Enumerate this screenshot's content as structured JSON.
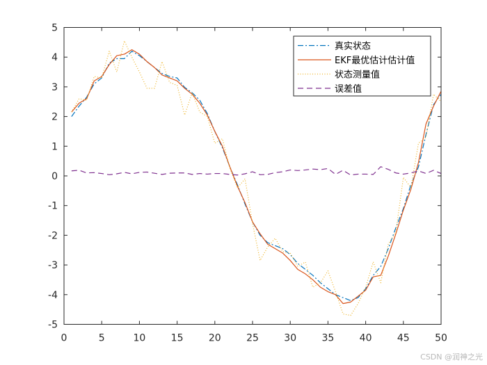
{
  "chart_data": {
    "type": "line",
    "title": "",
    "xlabel": "",
    "ylabel": "",
    "xlim": [
      0,
      50
    ],
    "ylim": [
      -5,
      5
    ],
    "xticks": [
      0,
      5,
      10,
      15,
      20,
      25,
      30,
      35,
      40,
      45,
      50
    ],
    "yticks": [
      -5,
      -4,
      -3,
      -2,
      -1,
      0,
      1,
      2,
      3,
      4,
      5
    ],
    "grid": false,
    "legend_position": "top-right",
    "x": [
      1,
      2,
      3,
      4,
      5,
      6,
      7,
      8,
      9,
      10,
      11,
      12,
      13,
      14,
      15,
      16,
      17,
      18,
      19,
      20,
      21,
      22,
      23,
      24,
      25,
      26,
      27,
      28,
      29,
      30,
      31,
      32,
      33,
      34,
      35,
      36,
      37,
      38,
      39,
      40,
      41,
      42,
      43,
      44,
      45,
      46,
      47,
      48,
      49,
      50
    ],
    "series": [
      {
        "name": "真实状态",
        "color": "#0072BD",
        "style": "dash-dot",
        "values": [
          2.0,
          2.35,
          2.65,
          3.1,
          3.3,
          3.8,
          3.95,
          3.95,
          4.2,
          4.05,
          3.85,
          3.65,
          3.45,
          3.35,
          3.3,
          2.98,
          2.8,
          2.55,
          2.1,
          1.5,
          0.95,
          0.3,
          -0.3,
          -0.95,
          -1.55,
          -2.0,
          -2.25,
          -2.35,
          -2.45,
          -2.65,
          -2.95,
          -3.15,
          -3.35,
          -3.6,
          -3.8,
          -4.0,
          -4.1,
          -4.2,
          -4.1,
          -3.8,
          -3.35,
          -3.05,
          -2.45,
          -1.75,
          -1.1,
          -0.3,
          0.3,
          1.4,
          2.4,
          2.75
        ]
      },
      {
        "name": "EKF最优估计估计值",
        "color": "#D95319",
        "style": "solid",
        "values": [
          2.15,
          2.45,
          2.6,
          3.2,
          3.35,
          3.75,
          4.05,
          4.1,
          4.25,
          4.1,
          3.85,
          3.65,
          3.4,
          3.3,
          3.2,
          2.95,
          2.75,
          2.45,
          2.05,
          1.5,
          1.0,
          0.3,
          -0.35,
          -0.9,
          -1.55,
          -1.95,
          -2.3,
          -2.45,
          -2.6,
          -2.85,
          -3.15,
          -3.3,
          -3.5,
          -3.75,
          -3.9,
          -4.0,
          -4.3,
          -4.25,
          -4.05,
          -3.85,
          -3.4,
          -3.35,
          -2.7,
          -1.95,
          -1.15,
          -0.45,
          0.45,
          1.75,
          2.35,
          2.85
        ]
      },
      {
        "name": "状态测量值",
        "color": "#EDB120",
        "style": "dotted",
        "values": [
          2.15,
          2.6,
          2.55,
          3.35,
          3.3,
          4.2,
          3.5,
          4.55,
          4.0,
          3.5,
          2.95,
          2.95,
          3.85,
          3.15,
          3.05,
          2.05,
          2.8,
          2.15,
          2.0,
          1.1,
          1.25,
          0.25,
          -0.4,
          -0.1,
          -1.6,
          -2.85,
          -2.4,
          -2.1,
          -2.55,
          -2.6,
          -3.05,
          -2.9,
          -3.75,
          -3.6,
          -3.2,
          -3.9,
          -4.65,
          -4.7,
          -4.3,
          -3.75,
          -2.9,
          -3.6,
          -2.3,
          -1.9,
          -0.05,
          -0.4,
          1.1,
          1.3,
          2.75,
          2.5
        ]
      },
      {
        "name": "误差值",
        "color": "#7E2F8E",
        "style": "dashed",
        "values": [
          0.17,
          0.19,
          0.1,
          0.11,
          0.08,
          0.04,
          0.07,
          0.12,
          0.07,
          0.12,
          0.13,
          0.09,
          0.05,
          0.09,
          0.1,
          0.1,
          0.05,
          0.08,
          0.06,
          0.08,
          0.08,
          0.05,
          0.03,
          0.07,
          0.14,
          0.04,
          0.05,
          0.11,
          0.14,
          0.2,
          0.18,
          0.2,
          0.23,
          0.21,
          0.25,
          0.05,
          0.19,
          0.03,
          0.06,
          0.06,
          0.05,
          0.31,
          0.22,
          0.1,
          0.06,
          0.1,
          0.17,
          0.08,
          0.19,
          0.08
        ]
      }
    ]
  },
  "watermark": "CSDN @润神之光"
}
